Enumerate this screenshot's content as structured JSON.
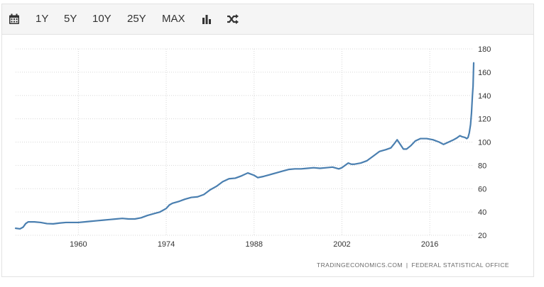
{
  "toolbar": {
    "icons": {
      "calendar": "calendar-icon",
      "bar_chart": "bar-chart-icon",
      "shuffle": "shuffle-icon"
    },
    "ranges": [
      "1Y",
      "5Y",
      "10Y",
      "25Y",
      "MAX"
    ]
  },
  "source": {
    "left": "TRADINGECONOMICS.COM",
    "separator": "|",
    "right": "FEDERAL STATISTICAL OFFICE"
  },
  "colors": {
    "line": "#4a7fb0",
    "grid": "#d7d7d7",
    "toolbar_bg": "#f5f5f5"
  },
  "chart_data": {
    "type": "line",
    "xlim": [
      1950,
      2023
    ],
    "ylim": [
      20,
      180
    ],
    "x_ticks": [
      1960,
      1974,
      1988,
      2002,
      2016
    ],
    "y_ticks": [
      20,
      40,
      60,
      80,
      100,
      120,
      140,
      160,
      180
    ],
    "grid": true,
    "legend": "none",
    "series": [
      {
        "values": [
          [
            1950,
            26
          ],
          [
            1950.7,
            25.5
          ],
          [
            1951.2,
            27
          ],
          [
            1951.6,
            30
          ],
          [
            1952,
            31.5
          ],
          [
            1953,
            31.5
          ],
          [
            1954,
            31
          ],
          [
            1955,
            30
          ],
          [
            1956,
            29.8
          ],
          [
            1957,
            30.5
          ],
          [
            1958,
            31
          ],
          [
            1959,
            31
          ],
          [
            1960,
            31
          ],
          [
            1961,
            31.5
          ],
          [
            1962,
            32
          ],
          [
            1963,
            32.5
          ],
          [
            1964,
            33
          ],
          [
            1965,
            33.5
          ],
          [
            1966,
            34
          ],
          [
            1967,
            34.5
          ],
          [
            1968,
            34
          ],
          [
            1969,
            34
          ],
          [
            1970,
            35
          ],
          [
            1971,
            37
          ],
          [
            1972,
            38.5
          ],
          [
            1973,
            40
          ],
          [
            1974,
            43
          ],
          [
            1974.5,
            46
          ],
          [
            1975,
            47.5
          ],
          [
            1976,
            49
          ],
          [
            1977,
            51
          ],
          [
            1978,
            52.5
          ],
          [
            1979,
            53
          ],
          [
            1980,
            55
          ],
          [
            1981,
            59
          ],
          [
            1982,
            62
          ],
          [
            1983,
            66
          ],
          [
            1984,
            68.5
          ],
          [
            1985,
            69
          ],
          [
            1986,
            71
          ],
          [
            1987,
            73.5
          ],
          [
            1988,
            71.5
          ],
          [
            1988.6,
            69.5
          ],
          [
            1989.5,
            70.5
          ],
          [
            1990.5,
            72
          ],
          [
            1991.5,
            73.5
          ],
          [
            1992.5,
            75
          ],
          [
            1993.5,
            76.5
          ],
          [
            1994.5,
            77
          ],
          [
            1995.5,
            77
          ],
          [
            1996.5,
            77.5
          ],
          [
            1997.5,
            78
          ],
          [
            1998.5,
            77.5
          ],
          [
            1999.5,
            78
          ],
          [
            2000.5,
            78.5
          ],
          [
            2001.5,
            77
          ],
          [
            2002,
            78
          ],
          [
            2002.5,
            80
          ],
          [
            2003,
            82
          ],
          [
            2003.5,
            81
          ],
          [
            2004,
            81
          ],
          [
            2005,
            82
          ],
          [
            2006,
            84
          ],
          [
            2007,
            88
          ],
          [
            2008,
            92
          ],
          [
            2009,
            93.5
          ],
          [
            2009.8,
            95
          ],
          [
            2010.4,
            99
          ],
          [
            2010.8,
            102
          ],
          [
            2011.3,
            98
          ],
          [
            2011.8,
            94
          ],
          [
            2012.3,
            94
          ],
          [
            2013,
            97
          ],
          [
            2013.7,
            101
          ],
          [
            2014.5,
            103
          ],
          [
            2015.5,
            103
          ],
          [
            2016.5,
            102
          ],
          [
            2017.5,
            100
          ],
          [
            2018.2,
            98
          ],
          [
            2019,
            100
          ],
          [
            2019.8,
            102
          ],
          [
            2020.3,
            103.5
          ],
          [
            2020.8,
            105.5
          ],
          [
            2021.2,
            104.5
          ],
          [
            2021.6,
            104
          ],
          [
            2021.9,
            103
          ],
          [
            2022.1,
            104
          ],
          [
            2022.3,
            108
          ],
          [
            2022.5,
            115
          ],
          [
            2022.65,
            125
          ],
          [
            2022.8,
            140
          ],
          [
            2022.9,
            148
          ],
          [
            2023.0,
            168
          ]
        ]
      }
    ]
  }
}
